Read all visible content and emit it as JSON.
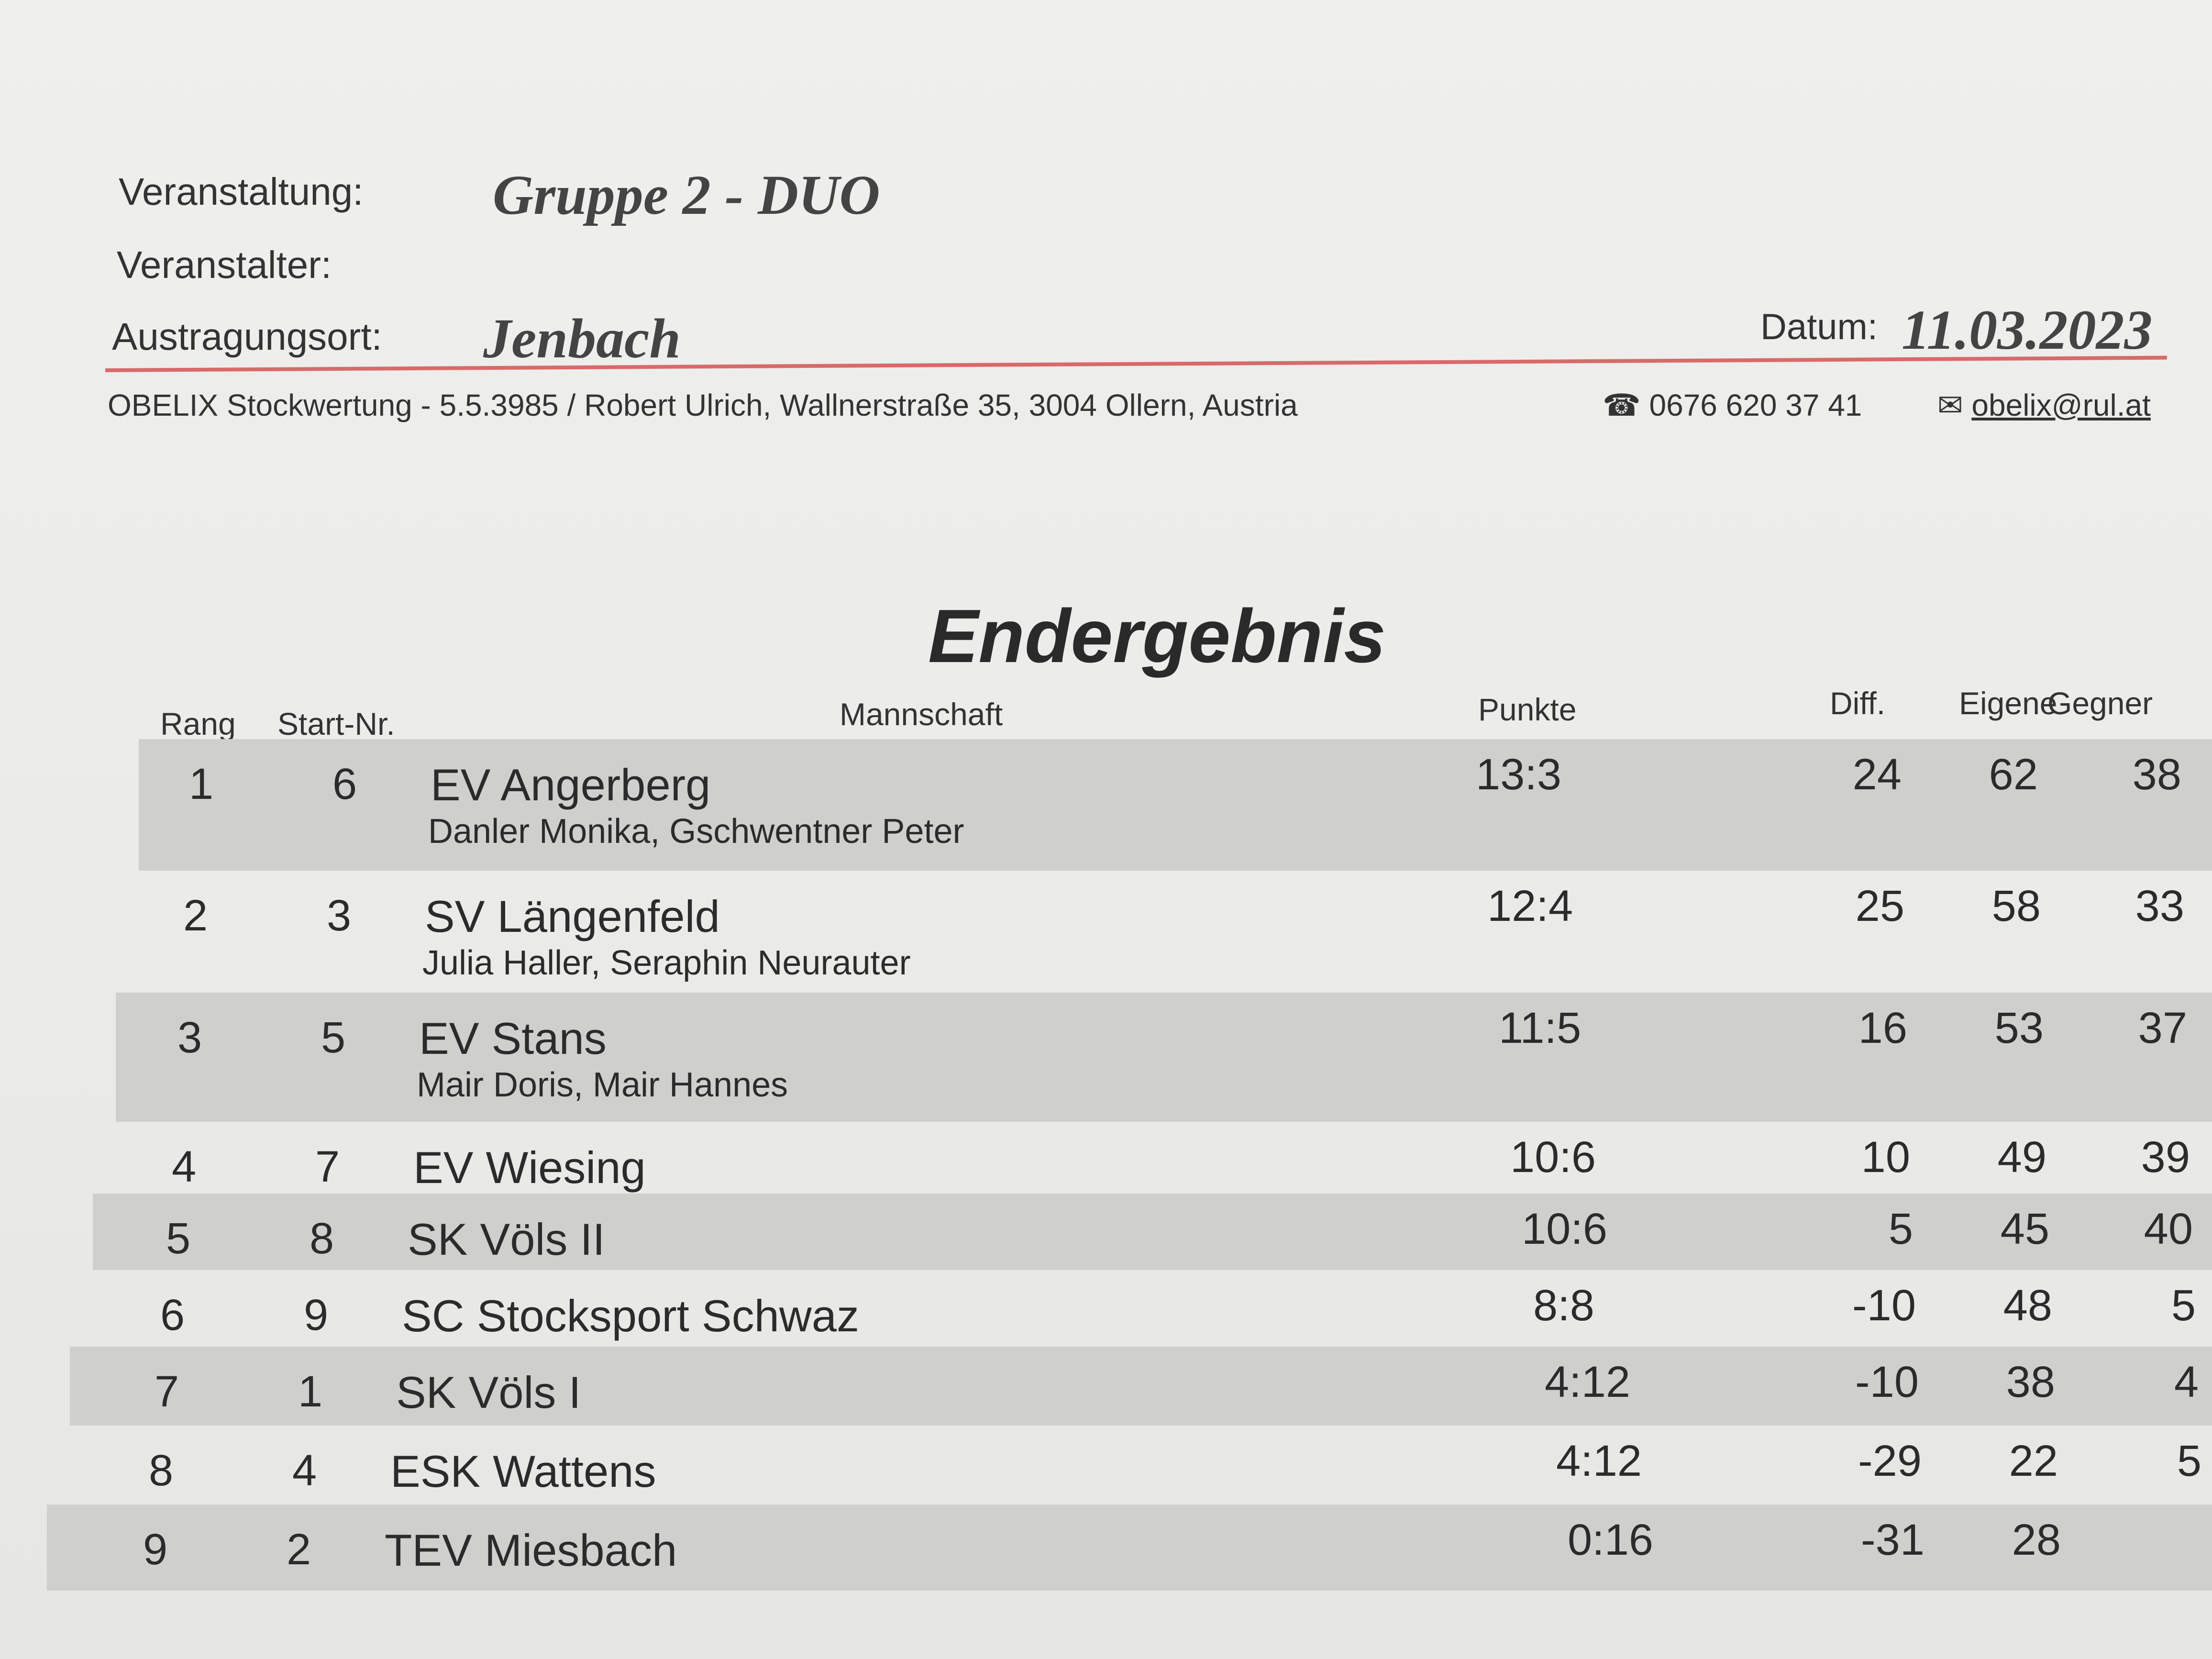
{
  "header": {
    "event_label": "Veranstaltung:",
    "event_value": "Gruppe 2 - DUO",
    "organizer_label": "Veranstalter:",
    "location_label": "Austragungsort:",
    "location_value": "Jenbach",
    "date_label": "Datum:",
    "date_value": "11.03.2023"
  },
  "footer": {
    "software": "OBELIX Stockwertung - 5.5.3985 / Robert Ulrich, Wallnerstraße 35, 3004 Ollern, Austria",
    "phone": "0676 620 37 41",
    "email": "obelix@rul.at",
    "phone_icon": "phone-icon",
    "mail_icon": "mail-icon"
  },
  "title": "Endergebnis",
  "columns": {
    "rang": "Rang",
    "start": "Start-Nr.",
    "team": "Mannschaft",
    "punkte": "Punkte",
    "diff": "Diff.",
    "eigene": "Eigene",
    "gegner": "Gegner"
  },
  "rows": [
    {
      "rang": "1",
      "start": "6",
      "team": "EV Angerberg",
      "players": "Danler Monika, Gschwentner Peter",
      "punkte": "13:3",
      "diff": "24",
      "eigene": "62",
      "gegner": "38"
    },
    {
      "rang": "2",
      "start": "3",
      "team": "SV Längenfeld",
      "players": "Julia Haller, Seraphin Neurauter",
      "punkte": "12:4",
      "diff": "25",
      "eigene": "58",
      "gegner": "33"
    },
    {
      "rang": "3",
      "start": "5",
      "team": "EV Stans",
      "players": "Mair Doris, Mair Hannes",
      "punkte": "11:5",
      "diff": "16",
      "eigene": "53",
      "gegner": "37"
    },
    {
      "rang": "4",
      "start": "7",
      "team": "EV Wiesing",
      "players": "",
      "punkte": "10:6",
      "diff": "10",
      "eigene": "49",
      "gegner": "39"
    },
    {
      "rang": "5",
      "start": "8",
      "team": "SK Völs II",
      "players": "",
      "punkte": "10:6",
      "diff": "5",
      "eigene": "45",
      "gegner": "40"
    },
    {
      "rang": "6",
      "start": "9",
      "team": "SC Stocksport Schwaz",
      "players": "",
      "punkte": "8:8",
      "diff": "-10",
      "eigene": "48",
      "gegner": "5"
    },
    {
      "rang": "7",
      "start": "1",
      "team": "SK Völs I",
      "players": "",
      "punkte": "4:12",
      "diff": "-10",
      "eigene": "38",
      "gegner": "4"
    },
    {
      "rang": "8",
      "start": "4",
      "team": "ESK Wattens",
      "players": "",
      "punkte": "4:12",
      "diff": "-29",
      "eigene": "22",
      "gegner": "5"
    },
    {
      "rang": "9",
      "start": "2",
      "team": "TEV Miesbach",
      "players": "",
      "punkte": "0:16",
      "diff": "-31",
      "eigene": "28",
      "gegner": ""
    }
  ],
  "colors": {
    "shade": "#cfcfcd",
    "underline": "#d86a6a"
  }
}
